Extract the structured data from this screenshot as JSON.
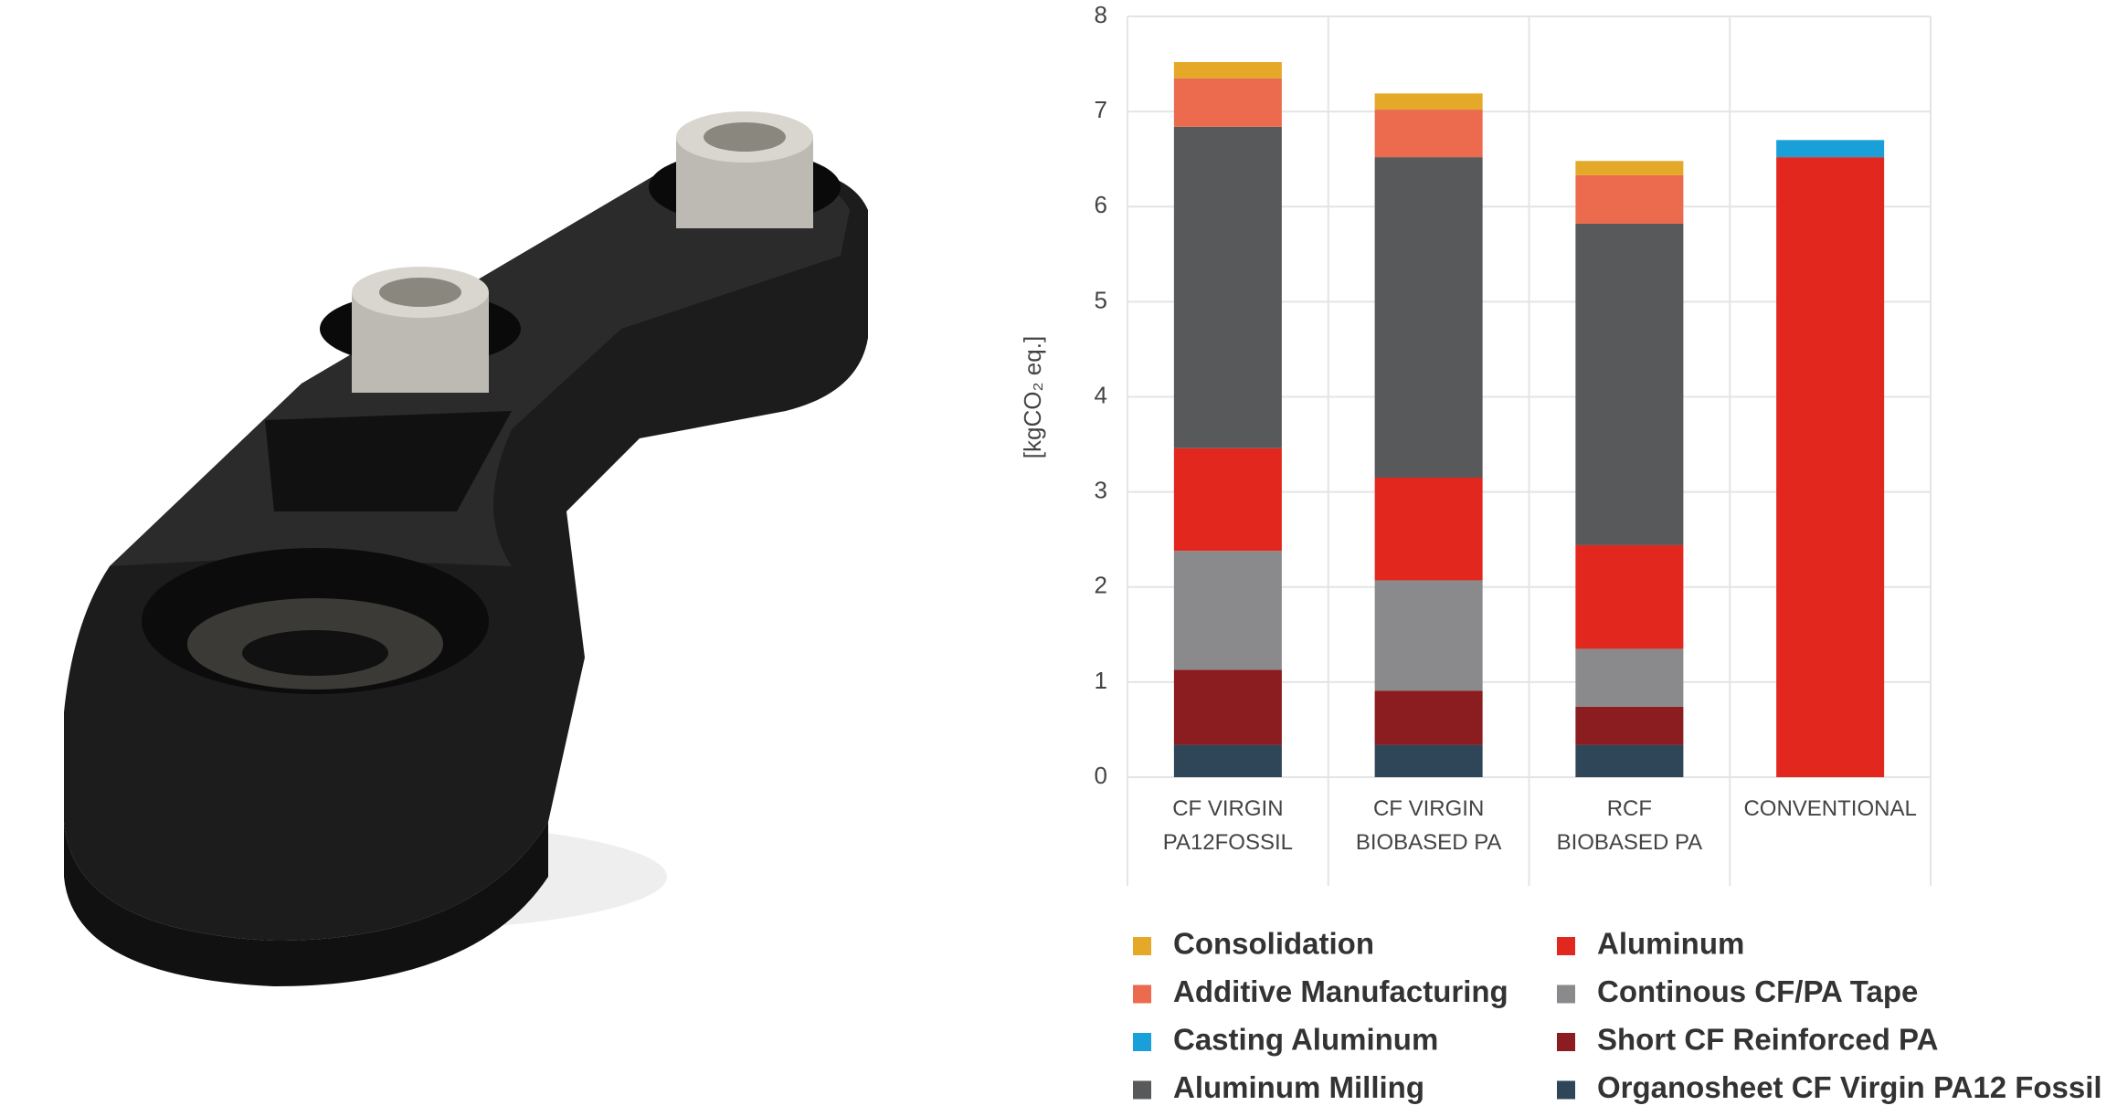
{
  "chart_data": {
    "type": "stacked_bar",
    "y_label": "[kgCO₂ eq.]",
    "categories": [
      "CF VIRGIN\nPA12FOSSIL",
      "CF VIRGIN\nBIOBASED PA",
      "RCF\nBIOBASED PA",
      "CONVENTIONAL"
    ],
    "series": [
      {
        "name": "Organosheet CF Virgin PA12 Fossil",
        "color": "#2f4558",
        "values": [
          0.34,
          0.34,
          0.34,
          null
        ]
      },
      {
        "name": "Short CF Reinforced PA",
        "color": "#8b1c1f",
        "values": [
          0.79,
          0.57,
          0.4,
          null
        ]
      },
      {
        "name": "Continous CF/PA Tape",
        "color": "#8a8a8c",
        "values": [
          1.25,
          1.16,
          0.61,
          null
        ]
      },
      {
        "name": "Aluminum",
        "color": "#e2281e",
        "values": [
          1.08,
          1.08,
          1.09,
          6.52
        ]
      },
      {
        "name": "Aluminum Milling",
        "color": "#58595b",
        "values": [
          3.38,
          3.37,
          3.38,
          null
        ]
      },
      {
        "name": "Additive Manufacturing",
        "color": "#ec6b4e",
        "values": [
          0.51,
          0.5,
          0.51,
          null
        ]
      },
      {
        "name": "Consolidation",
        "color": "#e4a928",
        "values": [
          0.17,
          0.17,
          0.15,
          null
        ]
      },
      {
        "name": "Casting Aluminum",
        "color": "#1aa0d8",
        "values": [
          null,
          null,
          null,
          0.18
        ]
      }
    ],
    "ylim": [
      0,
      8
    ],
    "yticks": [
      0,
      1,
      2,
      3,
      4,
      5,
      6,
      7,
      8
    ],
    "grid": true
  }
}
